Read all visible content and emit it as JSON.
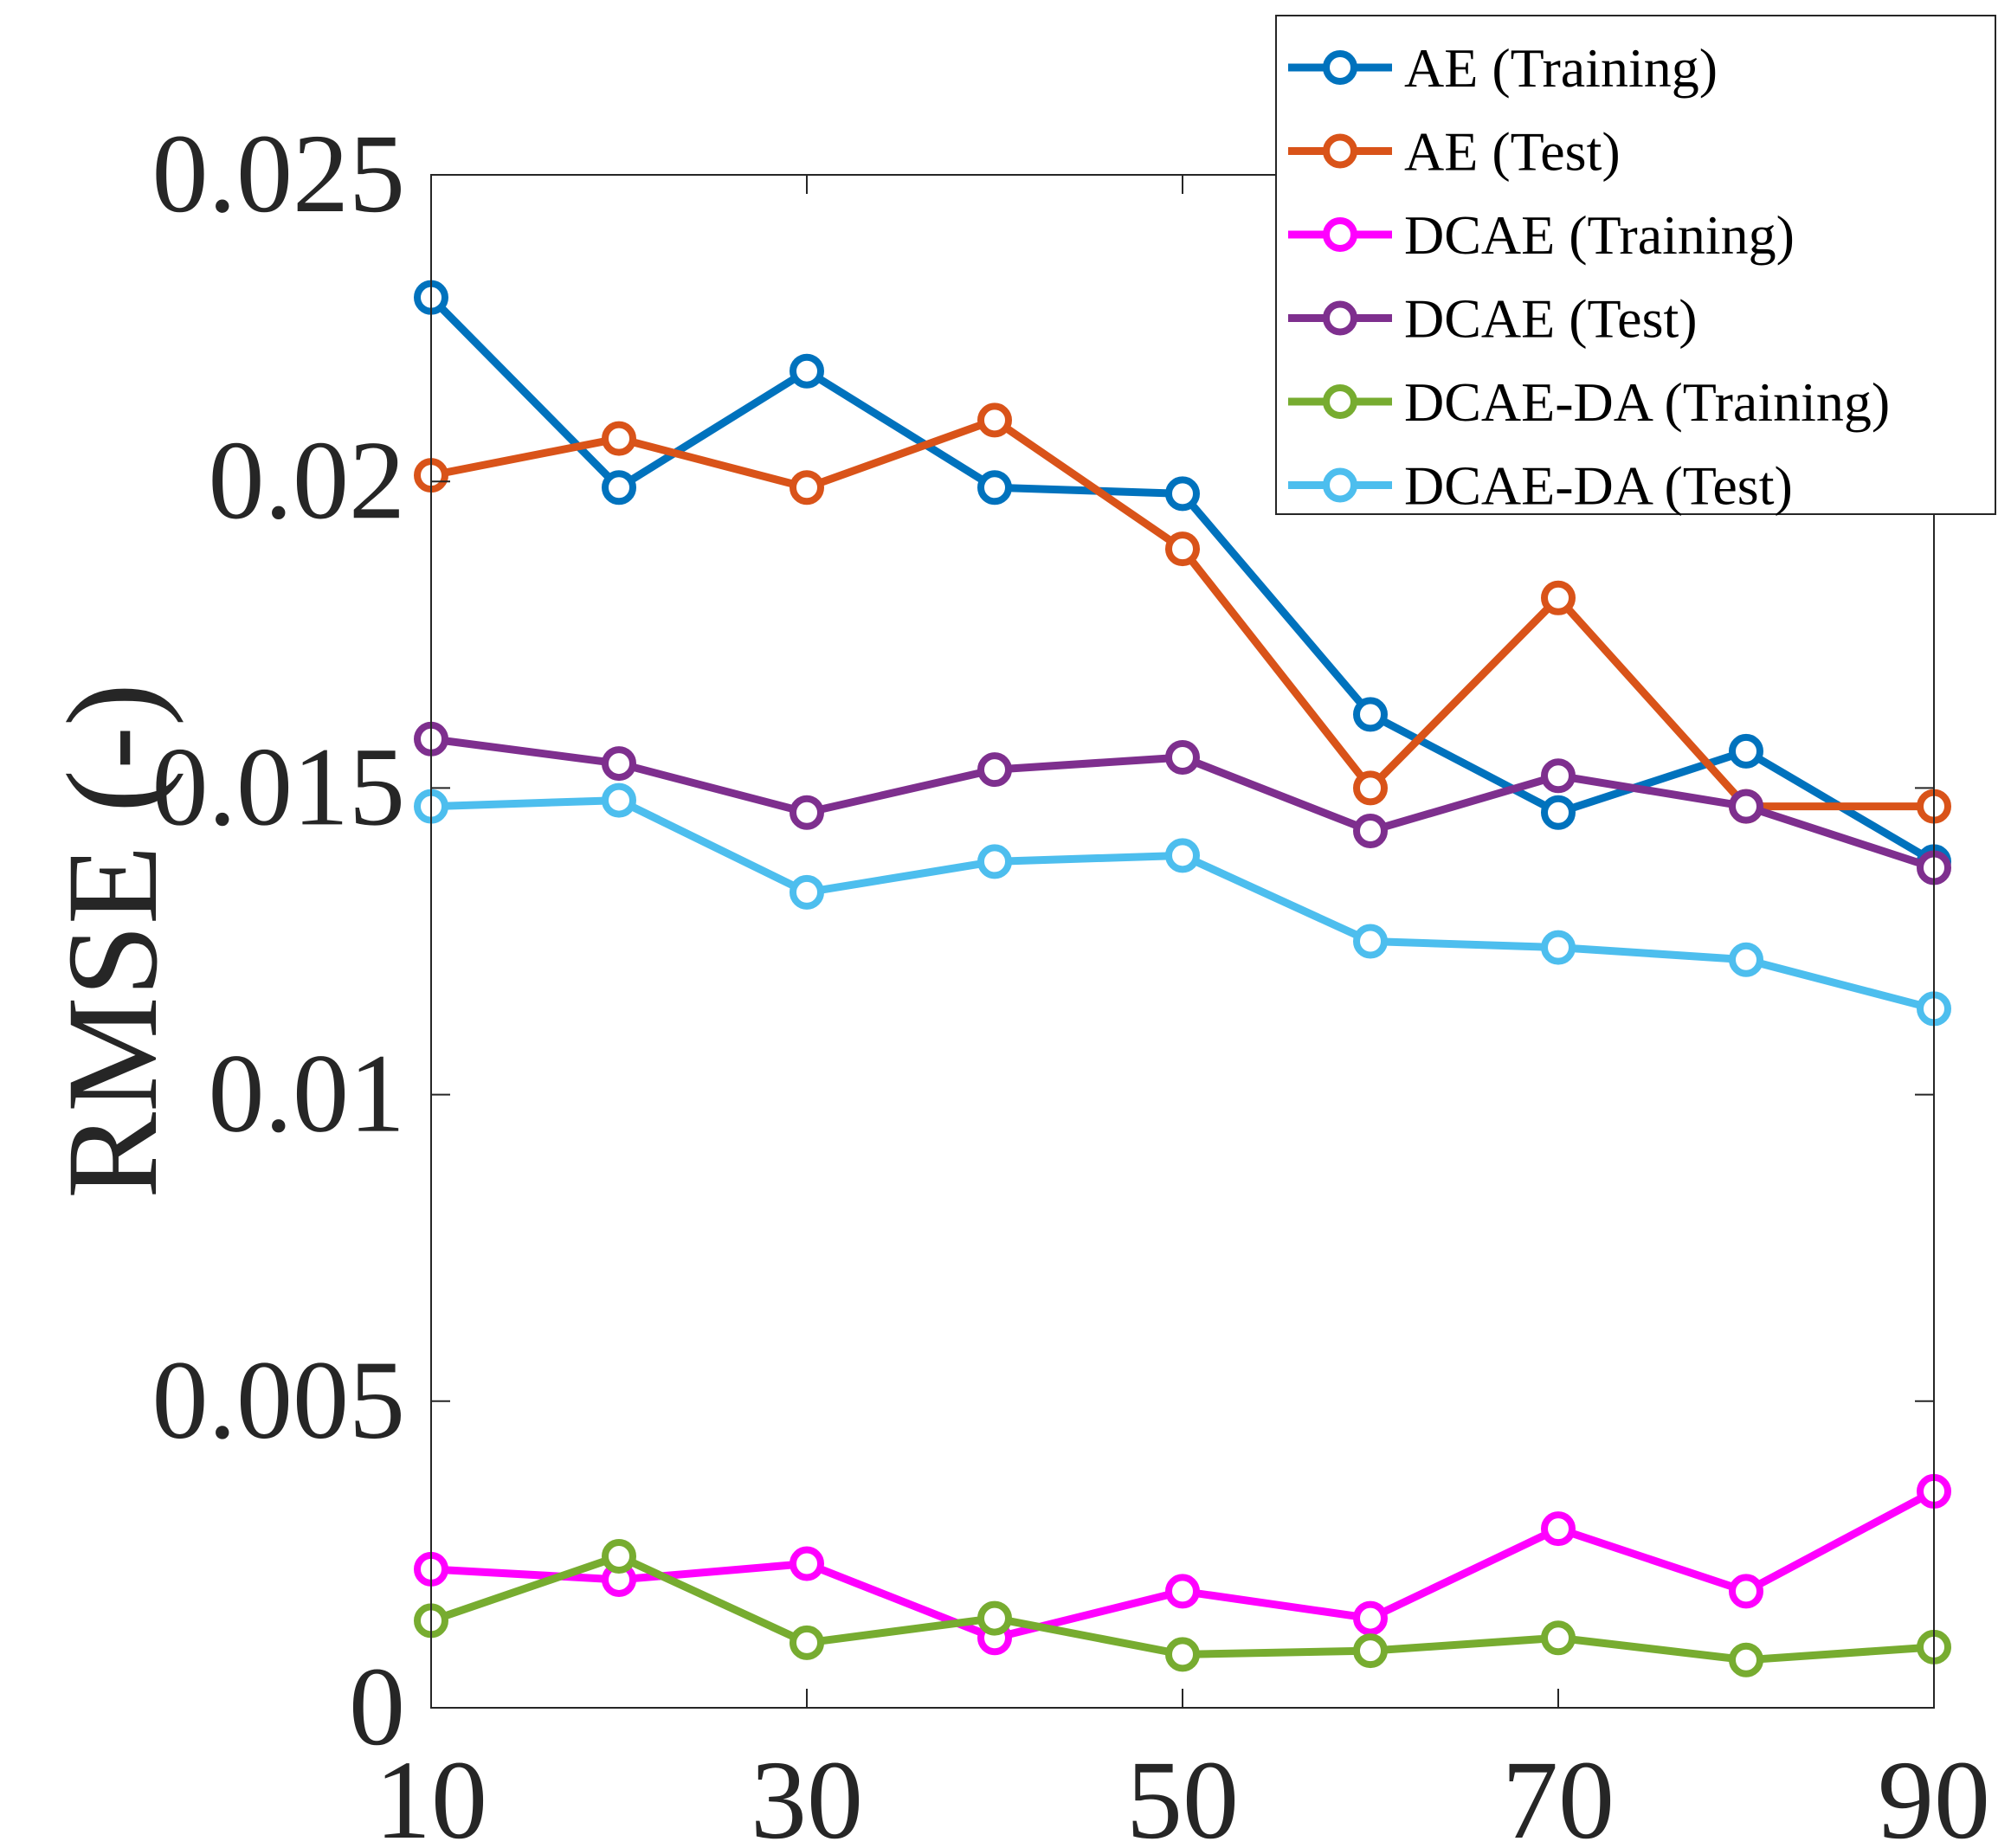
{
  "chart_data": {
    "type": "line",
    "title": "",
    "xlabel": "",
    "ylabel": "RMSE (-)",
    "x": [
      10,
      20,
      30,
      40,
      50,
      60,
      70,
      80,
      90
    ],
    "xlim": [
      10,
      90
    ],
    "ylim": [
      0,
      0.025
    ],
    "xticks": [
      10,
      30,
      50,
      70,
      90
    ],
    "xtick_labels": [
      "10",
      "30",
      "50",
      "70",
      "90"
    ],
    "yticks": [
      0,
      0.005,
      0.01,
      0.015,
      0.02,
      0.025
    ],
    "ytick_labels": [
      "0",
      "0.005",
      "0.01",
      "0.015",
      "0.02",
      "0.025"
    ],
    "grid": false,
    "legend_placement": "top-right",
    "marker": "circle",
    "series": [
      {
        "name": "AE (Training)",
        "color": "#0072BD",
        "values": [
          0.023,
          0.0199,
          0.0218,
          0.0199,
          0.0198,
          0.0162,
          0.0146,
          0.0156,
          0.0138
        ]
      },
      {
        "name": "AE (Test)",
        "color": "#D95319",
        "values": [
          0.0201,
          0.0207,
          0.0199,
          0.021,
          0.0189,
          0.015,
          0.0181,
          0.0147,
          0.0147
        ]
      },
      {
        "name": "DCAE (Training)",
        "color": "#FF00FF",
        "values": [
          0.00226,
          0.00209,
          0.00235,
          0.00114,
          0.0019,
          0.00146,
          0.00292,
          0.0019,
          0.00353
        ]
      },
      {
        "name": "DCAE (Test)",
        "color": "#7E2F8E",
        "values": [
          0.0158,
          0.0154,
          0.0146,
          0.0153,
          0.0155,
          0.0143,
          0.0152,
          0.0147,
          0.0137
        ]
      },
      {
        "name": "DCAE-DA (Training)",
        "color": "#77AC30",
        "values": [
          0.00142,
          0.00247,
          0.00106,
          0.00146,
          0.00087,
          0.00093,
          0.00114,
          0.00078,
          0.00099
        ]
      },
      {
        "name": "DCAE-DA (Test)",
        "color": "#4DBEEE",
        "values": [
          0.0147,
          0.0148,
          0.0133,
          0.0138,
          0.0139,
          0.0125,
          0.0124,
          0.0122,
          0.0114
        ]
      }
    ]
  }
}
